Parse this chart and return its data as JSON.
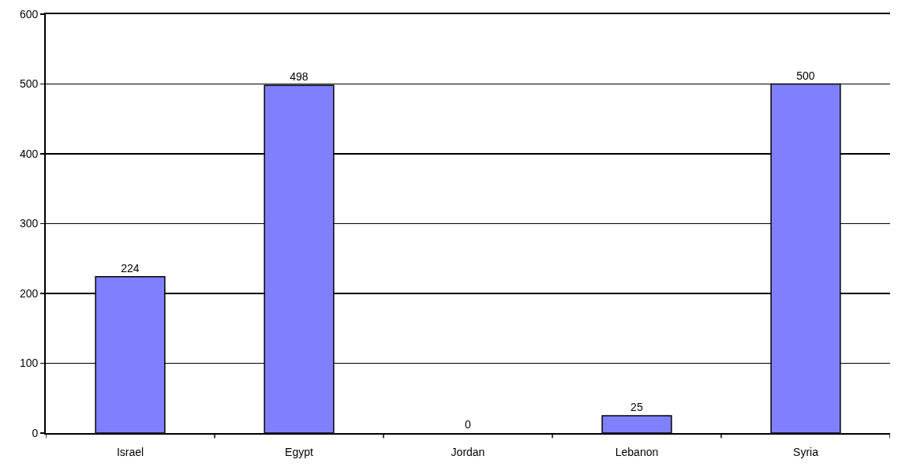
{
  "chart_data": {
    "type": "bar",
    "categories": [
      "Israel",
      "Egypt",
      "Jordan",
      "Lebanon",
      "Syria"
    ],
    "values": [
      224,
      498,
      0,
      25,
      500
    ],
    "color": "#8080ff",
    "ylim": [
      0,
      600
    ],
    "yticks": [
      0,
      100,
      200,
      300,
      400,
      500,
      600
    ],
    "grid": "y",
    "data_labels": true
  }
}
